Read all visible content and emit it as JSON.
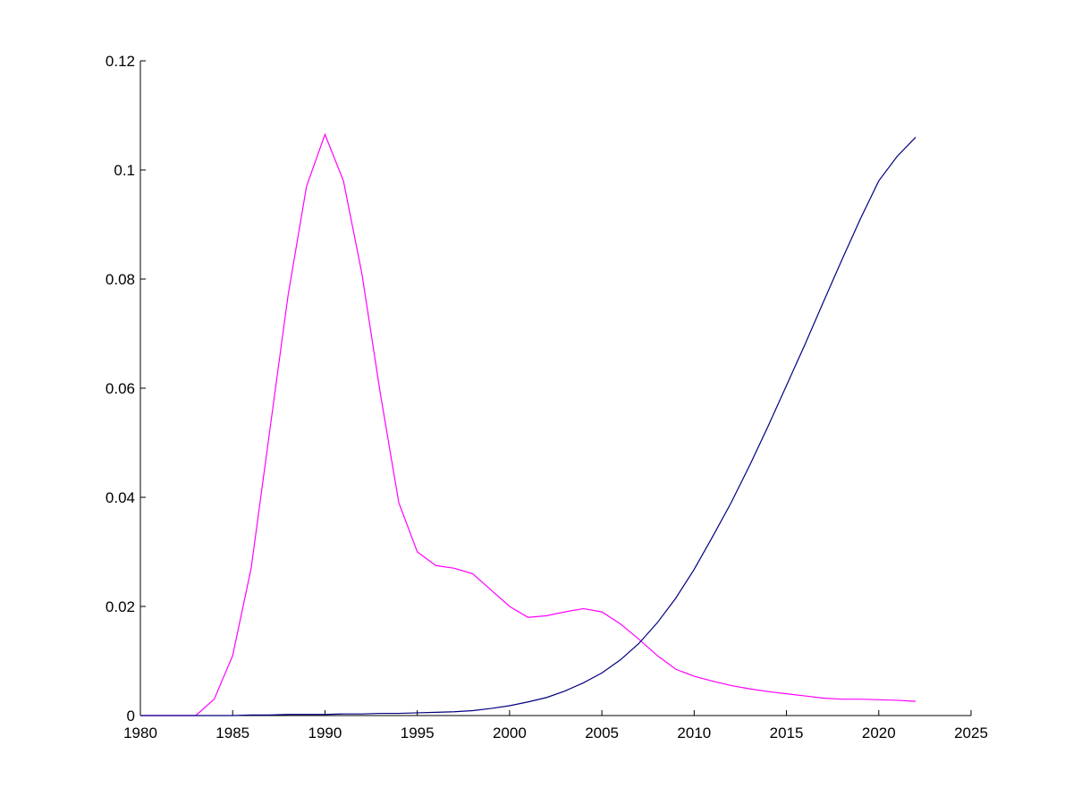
{
  "chart_data": {
    "type": "line",
    "x": [
      1980,
      1981,
      1982,
      1983,
      1984,
      1985,
      1986,
      1987,
      1988,
      1989,
      1990,
      1991,
      1992,
      1993,
      1994,
      1995,
      1996,
      1997,
      1998,
      1999,
      2000,
      2001,
      2002,
      2003,
      2004,
      2005,
      2006,
      2007,
      2008,
      2009,
      2010,
      2011,
      2012,
      2013,
      2014,
      2015,
      2016,
      2017,
      2018,
      2019,
      2020,
      2021,
      2022
    ],
    "series": [
      {
        "color": "#ff00ff",
        "values": [
          0,
          0,
          0,
          0,
          0.003,
          0.011,
          0.027,
          0.052,
          0.077,
          0.097,
          0.1065,
          0.098,
          0.081,
          0.059,
          0.039,
          0.03,
          0.0275,
          0.027,
          0.026,
          0.023,
          0.02,
          0.018,
          0.0183,
          0.019,
          0.0196,
          0.019,
          0.0168,
          0.014,
          0.011,
          0.0085,
          0.0072,
          0.0063,
          0.0055,
          0.0049,
          0.0044,
          0.004,
          0.0036,
          0.0032,
          0.003,
          0.003,
          0.0029,
          0.0028,
          0.0026
        ]
      },
      {
        "color": "#000080",
        "values": [
          0,
          0,
          0,
          0,
          0,
          0,
          0.0001,
          0.0001,
          0.0002,
          0.0002,
          0.0002,
          0.0003,
          0.0003,
          0.0004,
          0.0004,
          0.0005,
          0.0006,
          0.0007,
          0.0009,
          0.0013,
          0.0018,
          0.0025,
          0.0033,
          0.0045,
          0.006,
          0.0078,
          0.0102,
          0.0132,
          0.017,
          0.0215,
          0.0268,
          0.0328,
          0.039,
          0.0458,
          0.053,
          0.0605,
          0.068,
          0.0758,
          0.0835,
          0.091,
          0.098,
          0.1025,
          0.106
        ]
      }
    ],
    "xlim": [
      1980,
      2025
    ],
    "xticks": [
      1980,
      1985,
      1990,
      1995,
      2000,
      2005,
      2010,
      2015,
      2020,
      2025
    ],
    "ylim": [
      0,
      0.12
    ],
    "yticks": [
      0,
      0.02,
      0.04,
      0.06,
      0.08,
      0.1,
      0.12
    ]
  }
}
